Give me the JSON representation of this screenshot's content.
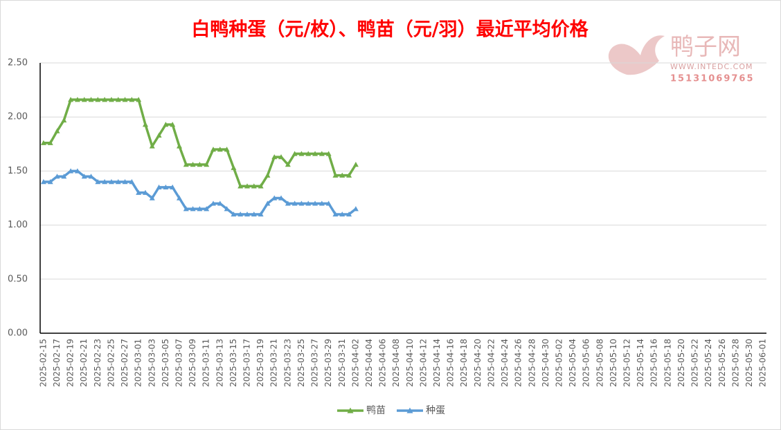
{
  "chart_data": {
    "type": "line",
    "title": "白鸭种蛋（元/枚）、鸭苗（元/羽）最近平均价格",
    "watermark": {
      "name": "鸭子网",
      "url": "WWW.INTEDC.COM",
      "phone": "15131069765"
    },
    "categories": [
      "2025-02-15",
      null,
      "2025-02-17",
      null,
      "2025-02-19",
      null,
      "2025-02-21",
      null,
      "2025-02-23",
      null,
      "2025-02-25",
      null,
      "2025-02-27",
      null,
      "2025-03-01",
      null,
      "2025-03-03",
      null,
      "2025-03-05",
      null,
      "2025-03-07",
      null,
      "2025-03-09",
      null,
      "2025-03-11",
      null,
      "2025-03-13",
      null,
      "2025-03-15",
      null,
      "2025-03-17",
      null,
      "2025-03-19",
      null,
      "2025-03-21",
      null,
      "2025-03-23",
      null,
      "2025-03-25",
      null,
      "2025-03-27",
      null,
      "2025-03-29",
      null,
      "2025-03-31",
      null,
      "2025-04-02",
      null,
      "2025-04-04",
      null,
      "2025-04-06",
      null,
      "2025-04-08",
      null,
      "2025-04-10",
      null,
      "2025-04-12",
      null,
      "2025-04-14",
      null,
      "2025-04-16",
      null,
      "2025-04-18",
      null,
      "2025-04-20",
      null,
      "2025-04-22",
      null,
      "2025-04-24",
      null,
      "2025-04-26",
      null,
      "2025-04-28",
      null,
      "2025-04-30",
      null,
      "2025-05-02",
      null,
      "2025-05-04",
      null,
      "2025-05-06",
      null,
      "2025-05-08",
      null,
      "2025-05-10",
      null,
      "2025-05-12",
      null,
      "2025-05-14",
      null,
      "2025-05-16",
      null,
      "2025-05-18",
      null,
      "2025-05-20",
      null,
      "2025-05-22",
      null,
      "2025-05-24",
      null,
      "2025-05-26",
      null,
      "2025-05-28",
      null,
      "2025-05-30",
      null,
      "2025-06-01"
    ],
    "series": [
      {
        "name": "鸭苗",
        "color": "#70ad47",
        "values": [
          1.76,
          1.76,
          1.87,
          1.97,
          2.16,
          2.16,
          2.16,
          2.16,
          2.16,
          2.16,
          2.16,
          2.16,
          2.16,
          2.16,
          2.16,
          1.93,
          1.73,
          1.83,
          1.93,
          1.93,
          1.73,
          1.56,
          1.56,
          1.56,
          1.56,
          1.7,
          1.7,
          1.7,
          1.53,
          1.36,
          1.36,
          1.36,
          1.36,
          1.46,
          1.63,
          1.63,
          1.56,
          1.66,
          1.66,
          1.66,
          1.66,
          1.66,
          1.66,
          1.46,
          1.46,
          1.46,
          1.56,
          null,
          null,
          null,
          null,
          null,
          null,
          null,
          null,
          null,
          null,
          null,
          null,
          null,
          null,
          null,
          null,
          null,
          null,
          null,
          null,
          null,
          null,
          null,
          null,
          null,
          null,
          null,
          null,
          null,
          null,
          null,
          null,
          null,
          null,
          null,
          null,
          null,
          null,
          null,
          null,
          null,
          null,
          null,
          null,
          null,
          null,
          null,
          null,
          null,
          null,
          null,
          null,
          null,
          null,
          null,
          null,
          null,
          null,
          null,
          null
        ]
      },
      {
        "name": "种蛋",
        "color": "#5b9bd5",
        "values": [
          1.4,
          1.4,
          1.45,
          1.45,
          1.5,
          1.5,
          1.45,
          1.45,
          1.4,
          1.4,
          1.4,
          1.4,
          1.4,
          1.4,
          1.3,
          1.3,
          1.25,
          1.35,
          1.35,
          1.35,
          1.25,
          1.15,
          1.15,
          1.15,
          1.15,
          1.2,
          1.2,
          1.15,
          1.1,
          1.1,
          1.1,
          1.1,
          1.1,
          1.2,
          1.25,
          1.25,
          1.2,
          1.2,
          1.2,
          1.2,
          1.2,
          1.2,
          1.2,
          1.1,
          1.1,
          1.1,
          1.15,
          null,
          null,
          null,
          null,
          null,
          null,
          null,
          null,
          null,
          null,
          null,
          null,
          null,
          null,
          null,
          null,
          null,
          null,
          null,
          null,
          null,
          null,
          null,
          null,
          null,
          null,
          null,
          null,
          null,
          null,
          null,
          null,
          null,
          null,
          null,
          null,
          null,
          null,
          null,
          null,
          null,
          null,
          null,
          null,
          null,
          null,
          null,
          null,
          null,
          null,
          null,
          null,
          null,
          null,
          null,
          null,
          null,
          null,
          null,
          null
        ]
      }
    ],
    "ylim": [
      0,
      2.5
    ],
    "yticks": [
      {
        "value": 0,
        "label": "0.00"
      },
      {
        "value": 0.5,
        "label": "0.50"
      },
      {
        "value": 1,
        "label": "1.00"
      },
      {
        "value": 1.5,
        "label": "1.50"
      },
      {
        "value": 2,
        "label": "2.00"
      },
      {
        "value": 2.5,
        "label": "2.50"
      }
    ],
    "grid": true,
    "legend": "bottom"
  }
}
